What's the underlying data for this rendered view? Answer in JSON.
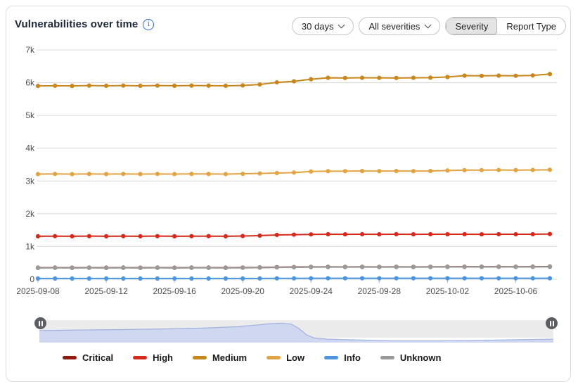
{
  "header": {
    "title": "Vulnerabilities over time"
  },
  "controls": {
    "time_range": {
      "value": "30 days"
    },
    "severity_filter": {
      "value": "All severities"
    },
    "toggle": {
      "options": [
        "Severity",
        "Report Type"
      ],
      "selected": "Severity"
    }
  },
  "colors": {
    "accent_blue": "#2e6cd4",
    "grid": "#d8d8d8",
    "axis_text": "#4d4d4d",
    "nav_track": "#ececec",
    "nav_fill": "#cfd8f0",
    "nav_line": "#9fb0dd",
    "handle": "#5b5f63"
  },
  "chart_data": {
    "type": "line",
    "title": "Vulnerabilities over time",
    "grid": true,
    "legend_position": "bottom",
    "ylim": [
      0,
      7000
    ],
    "y_tick_values": [
      0,
      1000,
      2000,
      3000,
      4000,
      5000,
      6000,
      7000
    ],
    "y_tick_labels": [
      "0",
      "1k",
      "2k",
      "3k",
      "4k",
      "5k",
      "6k",
      "7k"
    ],
    "x_tick_indices": [
      0,
      4,
      8,
      12,
      16,
      20,
      24,
      28
    ],
    "x": [
      "2025-09-08",
      "2025-09-09",
      "2025-09-10",
      "2025-09-11",
      "2025-09-12",
      "2025-09-13",
      "2025-09-14",
      "2025-09-15",
      "2025-09-16",
      "2025-09-17",
      "2025-09-18",
      "2025-09-19",
      "2025-09-20",
      "2025-09-21",
      "2025-09-22",
      "2025-09-23",
      "2025-09-24",
      "2025-09-25",
      "2025-09-26",
      "2025-09-27",
      "2025-09-28",
      "2025-09-29",
      "2025-09-30",
      "2025-10-01",
      "2025-10-02",
      "2025-10-03",
      "2025-10-04",
      "2025-10-05",
      "2025-10-06",
      "2025-10-07",
      "2025-10-08"
    ],
    "series": [
      {
        "name": "Critical",
        "color": "#8e1b0e",
        "values": [
          352,
          354,
          352,
          355,
          352,
          354,
          352,
          355,
          352,
          354,
          354,
          352,
          356,
          360,
          368,
          372,
          376,
          379,
          377,
          379,
          377,
          379,
          377,
          379,
          381,
          383,
          382,
          384,
          382,
          384,
          387
        ]
      },
      {
        "name": "High",
        "color": "#d6291a",
        "values": [
          1312,
          1316,
          1312,
          1317,
          1312,
          1316,
          1312,
          1317,
          1312,
          1316,
          1316,
          1312,
          1320,
          1332,
          1354,
          1362,
          1370,
          1374,
          1372,
          1374,
          1372,
          1375,
          1372,
          1374,
          1373,
          1375,
          1372,
          1375,
          1373,
          1375,
          1380
        ]
      },
      {
        "name": "Medium",
        "color": "#c8861c",
        "values": [
          5902,
          5908,
          5902,
          5912,
          5906,
          5912,
          5906,
          5912,
          5907,
          5912,
          5910,
          5906,
          5916,
          5946,
          6010,
          6042,
          6106,
          6150,
          6145,
          6150,
          6148,
          6144,
          6150,
          6154,
          6174,
          6216,
          6210,
          6216,
          6212,
          6222,
          6264
        ]
      },
      {
        "name": "Low",
        "color": "#e2a342",
        "values": [
          3210,
          3215,
          3210,
          3216,
          3211,
          3216,
          3211,
          3216,
          3211,
          3216,
          3215,
          3211,
          3220,
          3230,
          3242,
          3256,
          3290,
          3300,
          3300,
          3304,
          3301,
          3305,
          3301,
          3305,
          3320,
          3330,
          3330,
          3335,
          3331,
          3336,
          3342
        ]
      },
      {
        "name": "Info",
        "color": "#4c95de",
        "values": [
          24,
          24,
          24,
          24,
          24,
          24,
          24,
          24,
          24,
          24,
          24,
          24,
          24,
          25,
          27,
          28,
          29,
          30,
          30,
          30,
          30,
          30,
          30,
          30,
          30,
          30,
          30,
          30,
          30,
          30,
          30
        ]
      },
      {
        "name": "Unknown",
        "color": "#999999",
        "values": [
          346,
          348,
          346,
          349,
          346,
          348,
          346,
          349,
          346,
          348,
          348,
          346,
          350,
          354,
          362,
          366,
          370,
          373,
          371,
          373,
          371,
          373,
          371,
          373,
          375,
          377,
          376,
          378,
          376,
          378,
          380
        ]
      }
    ]
  },
  "navigator": {
    "handle_icon": "pause",
    "profile": [
      [
        0,
        0.5
      ],
      [
        0.08,
        0.47
      ],
      [
        0.16,
        0.45
      ],
      [
        0.24,
        0.42
      ],
      [
        0.32,
        0.38
      ],
      [
        0.38,
        0.32
      ],
      [
        0.42,
        0.24
      ],
      [
        0.45,
        0.17
      ],
      [
        0.47,
        0.15
      ],
      [
        0.49,
        0.19
      ],
      [
        0.505,
        0.4
      ],
      [
        0.52,
        0.7
      ],
      [
        0.535,
        0.85
      ],
      [
        0.56,
        0.9
      ],
      [
        0.6,
        0.93
      ],
      [
        0.65,
        0.96
      ],
      [
        0.7,
        0.985
      ],
      [
        0.78,
        0.985
      ],
      [
        0.86,
        0.96
      ],
      [
        0.93,
        0.93
      ],
      [
        1,
        0.9
      ]
    ]
  }
}
